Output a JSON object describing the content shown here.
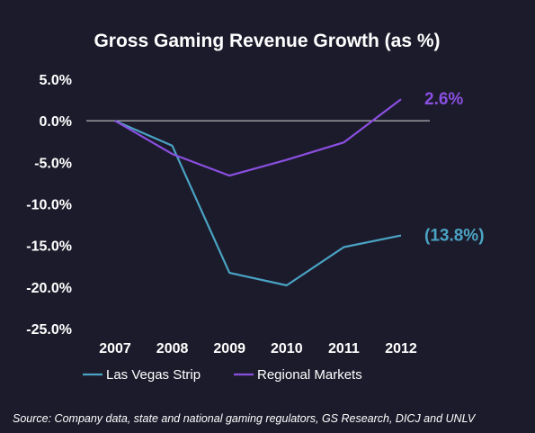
{
  "chart_data": {
    "type": "line",
    "title": "Gross Gaming Revenue Growth (as %)",
    "categories": [
      "2007",
      "2008",
      "2009",
      "2010",
      "2011",
      "2012"
    ],
    "yticks": [
      "5.0%",
      "0.0%",
      "-5.0%",
      "-10.0%",
      "-15.0%",
      "-20.0%",
      "-25.0%"
    ],
    "ytick_values": [
      5,
      0,
      -5,
      -10,
      -15,
      -20,
      -25
    ],
    "ylim": [
      -25,
      5
    ],
    "series": [
      {
        "name": "Las Vegas Strip",
        "color": "#4aa3c4",
        "values": [
          0.0,
          -3.0,
          -18.3,
          -19.8,
          -15.2,
          -13.8
        ],
        "end_label": "(13.8%)"
      },
      {
        "name": "Regional Markets",
        "color": "#8a4fe0",
        "values": [
          0.0,
          -4.0,
          -6.6,
          -4.7,
          -2.6,
          2.6
        ],
        "end_label": "2.6%"
      }
    ],
    "legend_position": "bottom",
    "grid": false,
    "source": "Source: Company data, state and national gaming regulators, GS Research, DICJ and UNLV"
  }
}
